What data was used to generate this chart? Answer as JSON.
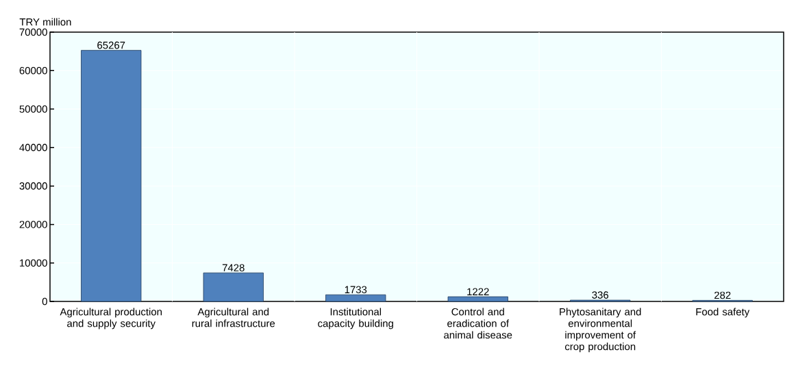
{
  "chart_data": {
    "type": "bar",
    "ylabel": "TRY million",
    "categories": [
      "Agricultural production and supply security",
      "Agricultural and rural infrastructure",
      "Institutional capacity building",
      "Control and eradication of animal disease",
      "Phytosanitary and environmental improvement of crop production",
      "Food safety"
    ],
    "values": [
      65267,
      7428,
      1733,
      1222,
      336,
      282
    ],
    "color": "#4f81bd",
    "ylim": [
      0,
      70000
    ],
    "yticks": [
      0,
      10000,
      20000,
      30000,
      40000,
      50000,
      60000,
      70000
    ],
    "grid": true,
    "data_labels": true
  }
}
